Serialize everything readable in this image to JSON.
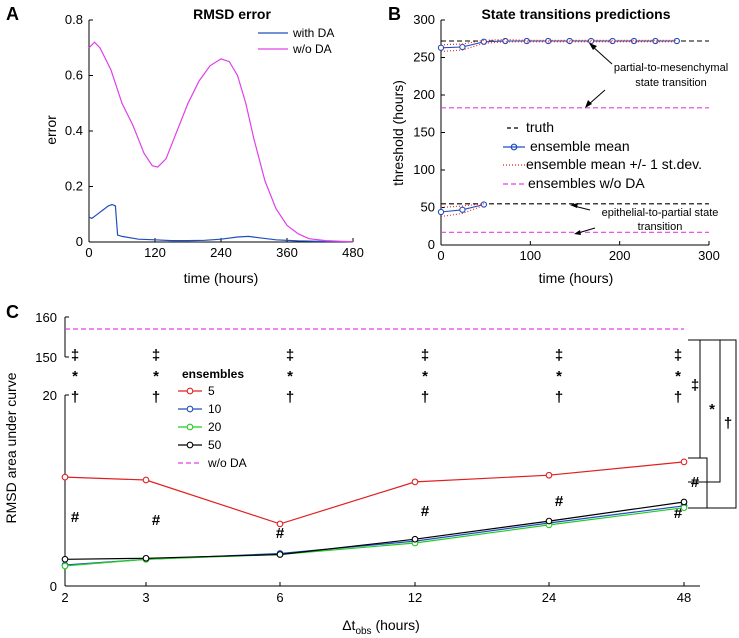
{
  "chart_data": [
    {
      "panel": "A",
      "type": "line",
      "title": "RMSD error",
      "xlabel": "time (hours)",
      "ylabel": "error",
      "xlim": [
        0,
        480
      ],
      "ylim": [
        0,
        0.8
      ],
      "xticks": [
        0,
        120,
        240,
        360,
        480
      ],
      "yticks": [
        0,
        0.2,
        0.4,
        0.6,
        0.8
      ],
      "legend_position": "top-right",
      "series": [
        {
          "name": "with DA",
          "color": "#1f4fbf",
          "x": [
            0,
            5,
            15,
            25,
            35,
            42,
            48,
            52,
            60,
            90,
            120,
            150,
            180,
            210,
            240,
            270,
            290,
            310,
            340,
            380,
            420,
            480
          ],
          "y": [
            0.09,
            0.085,
            0.1,
            0.115,
            0.13,
            0.135,
            0.13,
            0.025,
            0.02,
            0.01,
            0.008,
            0.005,
            0.005,
            0.006,
            0.01,
            0.018,
            0.02,
            0.015,
            0.008,
            0.004,
            0.002,
            0.001
          ]
        },
        {
          "name": "w/o DA",
          "color": "#e040e8",
          "x": [
            0,
            10,
            20,
            40,
            60,
            80,
            100,
            115,
            125,
            140,
            160,
            180,
            200,
            220,
            240,
            255,
            270,
            285,
            300,
            320,
            340,
            360,
            380,
            400,
            430,
            460,
            480
          ],
          "y": [
            0.7,
            0.72,
            0.7,
            0.62,
            0.5,
            0.42,
            0.32,
            0.275,
            0.27,
            0.3,
            0.4,
            0.5,
            0.58,
            0.635,
            0.66,
            0.65,
            0.6,
            0.5,
            0.37,
            0.22,
            0.12,
            0.06,
            0.03,
            0.012,
            0.005,
            0.002,
            0.001
          ]
        }
      ]
    },
    {
      "panel": "B",
      "type": "line",
      "title": "State transitions predictions",
      "xlabel": "time (hours)",
      "ylabel": "threshold (hours)",
      "xlim": [
        0,
        300
      ],
      "ylim": [
        0,
        300
      ],
      "xticks": [
        0,
        100,
        200,
        300
      ],
      "yticks": [
        0,
        50,
        100,
        150,
        200,
        250,
        300
      ],
      "legend_position": "center-right",
      "series": [
        {
          "name": "truth",
          "style": "dashed",
          "color": "#000000",
          "x": [
            0,
            300
          ],
          "y": [
            272,
            272
          ]
        },
        {
          "name": "truth",
          "style": "dashed",
          "color": "#000000",
          "x": [
            0,
            300
          ],
          "y": [
            55,
            55
          ]
        },
        {
          "name": "ensemble mean",
          "marker": "circle",
          "color": "#1f4fbf",
          "x": [
            0,
            24,
            48,
            72,
            96,
            120,
            144,
            168,
            192,
            216,
            240,
            264
          ],
          "y": [
            263,
            264,
            271,
            272,
            272,
            272,
            272,
            272,
            272,
            272,
            272,
            272
          ]
        },
        {
          "name": "ensemble mean",
          "marker": "circle",
          "color": "#1f4fbf",
          "x": [
            0,
            24,
            48
          ],
          "y": [
            44,
            47,
            54
          ]
        },
        {
          "name": "ensemble mean +/- 1 st.dev.",
          "style": "dotted",
          "color": "#e02020",
          "x": [
            0,
            24,
            48,
            72,
            96,
            120,
            144,
            168,
            192,
            216,
            240,
            264
          ],
          "y_upper": [
            267,
            268,
            273,
            274,
            273,
            273,
            273,
            273,
            273,
            273,
            273,
            273
          ],
          "y_lower": [
            258,
            260,
            269,
            271,
            271,
            271,
            271,
            271,
            271,
            271,
            271,
            271
          ]
        },
        {
          "name": "ensemble mean +/- 1 st.dev.",
          "style": "dotted",
          "color": "#e02020",
          "x": [
            0,
            24,
            48
          ],
          "y_upper": [
            50,
            52,
            55
          ],
          "y_lower": [
            38,
            42,
            53
          ]
        },
        {
          "name": "ensembles w/o DA",
          "style": "dashed",
          "color": "#e040e8",
          "x": [
            0,
            300
          ],
          "y": [
            183,
            183
          ]
        },
        {
          "name": "ensembles w/o DA",
          "style": "dashed",
          "color": "#e040e8",
          "x": [
            0,
            300
          ],
          "y": [
            17,
            17
          ]
        }
      ],
      "legend": [
        "truth",
        "ensemble mean",
        "ensemble mean +/- 1 st.dev.",
        "ensembles w/o DA"
      ],
      "annotations": {
        "upper": [
          "partial-to-mesenchymal",
          "state transition"
        ],
        "lower": [
          "epithelial-to-partial state",
          "transition"
        ]
      }
    },
    {
      "panel": "C",
      "type": "line",
      "xlabel_main": "Δt",
      "xlabel_sub": "obs",
      "xlabel_unit": " (hours)",
      "ylabel": "RMSD area under curve",
      "categories": [
        "2",
        "3",
        "6",
        "12",
        "24",
        "48"
      ],
      "yticks": [
        "0",
        "20",
        "150",
        "160"
      ],
      "legend_title": "ensembles",
      "legend_position": "upper-left",
      "series": [
        {
          "name": "5",
          "color": "#e02020",
          "values": [
            11.4,
            11.1,
            6.5,
            10.9,
            11.6,
            13.0
          ]
        },
        {
          "name": "10",
          "color": "#1f4fbf",
          "values": [
            2.2,
            2.8,
            3.4,
            4.7,
            6.6,
            8.4
          ]
        },
        {
          "name": "20",
          "color": "#22cc22",
          "values": [
            2.1,
            2.8,
            3.3,
            4.5,
            6.4,
            8.2
          ]
        },
        {
          "name": "50",
          "color": "#000000",
          "values": [
            2.8,
            2.9,
            3.3,
            4.9,
            6.8,
            8.8
          ]
        },
        {
          "name": "w/o DA",
          "style": "dashed",
          "color": "#e040e8",
          "values": [
            157,
            157,
            157,
            157,
            157,
            157
          ]
        }
      ],
      "significance_top": [
        "‡",
        "*",
        "†"
      ],
      "significance_hash": "#",
      "bracket_labels": {
        "double_dagger": "‡",
        "star": "*",
        "dagger": "†",
        "hash": "#"
      }
    }
  ],
  "panel_letters": [
    "A",
    "B",
    "C"
  ]
}
